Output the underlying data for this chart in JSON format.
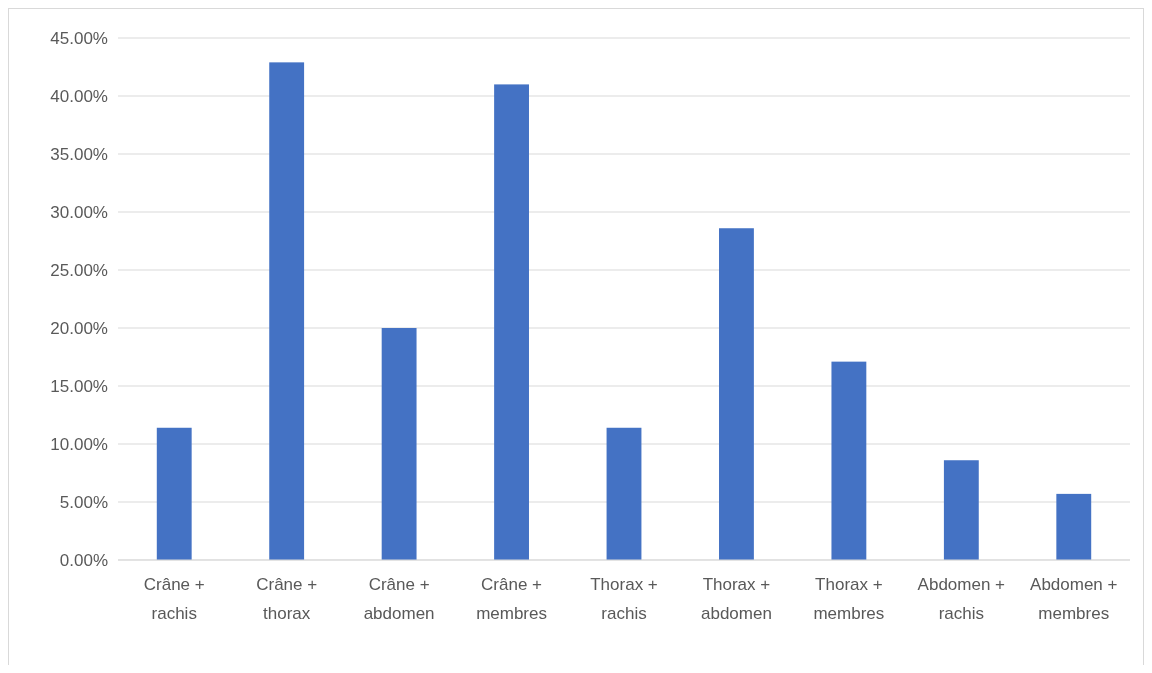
{
  "chart_data": {
    "type": "bar",
    "categories": [
      "Crâne + rachis",
      "Crâne + thorax",
      "Crâne + abdomen",
      "Crâne + membres",
      "Thorax + rachis",
      "Thorax + abdomen",
      "Thorax + membres",
      "Abdomen + rachis",
      "Abdomen + membres"
    ],
    "values": [
      11.4,
      42.9,
      20,
      41,
      11.4,
      28.6,
      17.1,
      8.6,
      5.7
    ],
    "color": "#4472c4",
    "ylim": [
      0,
      45
    ],
    "yticks": [
      {
        "value": 0,
        "label": "0.00%"
      },
      {
        "value": 5,
        "label": "5.00%"
      },
      {
        "value": 10,
        "label": "10.00%"
      },
      {
        "value": 15,
        "label": "15.00%"
      },
      {
        "value": 20,
        "label": "20.00%"
      },
      {
        "value": 25,
        "label": "25.00%"
      },
      {
        "value": 30,
        "label": "30.00%"
      },
      {
        "value": 35,
        "label": "35.00%"
      },
      {
        "value": 40,
        "label": "40.00%"
      },
      {
        "value": 45,
        "label": "45.00%"
      }
    ],
    "grid": "y"
  }
}
